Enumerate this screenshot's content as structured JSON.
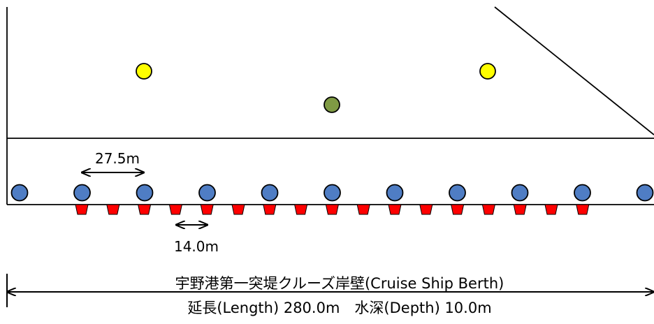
{
  "colors": {
    "line": "#000000",
    "bollard": "#4f7dc4",
    "fender": "#ff0000",
    "yellow_marker": "#ffff00",
    "green_marker": "#7f9a44"
  },
  "labels": {
    "bollard_spacing": "27.5m",
    "fender_spacing": "14.0m",
    "berth_name": "宇野港第一突堤クルーズ岸壁(Cruise Ship Berth)",
    "berth_dimensions": "延長(Length) 280.0m　水深(Depth) 10.0m"
  },
  "bollard_count": 11,
  "fender_count": 17,
  "yellow_marker_count": 2,
  "green_marker_count": 1
}
